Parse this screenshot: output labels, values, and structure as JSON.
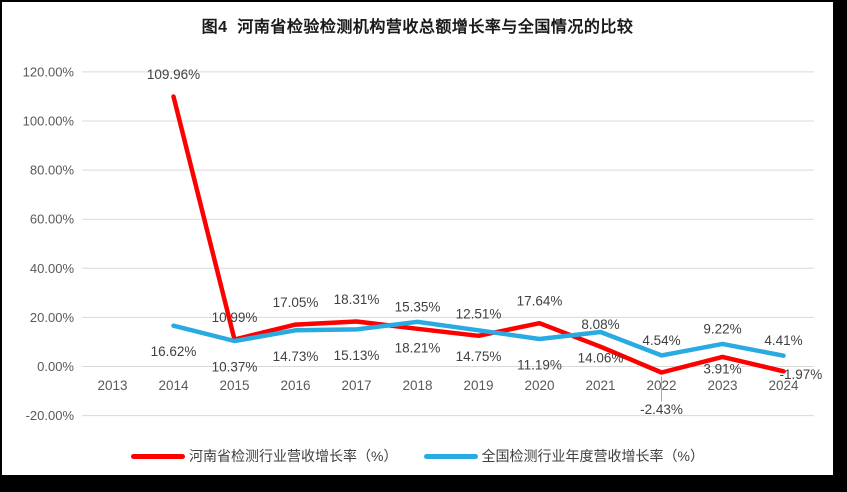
{
  "title": "图4  河南省检验检测机构营收总额增长率与全国情况的比较",
  "chart_data": {
    "type": "line",
    "categories": [
      "2013",
      "2014",
      "2015",
      "2016",
      "2017",
      "2018",
      "2019",
      "2020",
      "2021",
      "2022",
      "2023",
      "2024"
    ],
    "series": [
      {
        "name": "河南省检测行业营收增长率（%）",
        "color": "#FF0000",
        "values": [
          null,
          109.96,
          10.99,
          17.05,
          18.31,
          15.35,
          12.51,
          17.64,
          8.08,
          -2.43,
          3.91,
          -1.97
        ],
        "labels": [
          null,
          "109.96%",
          "10.99%",
          "17.05%",
          "18.31%",
          "15.35%",
          "12.51%",
          "17.64%",
          "8.08%",
          "-2.43%",
          "3.91%",
          "-1.97%"
        ],
        "label_positions": [
          null,
          "above",
          "above",
          "above",
          "above",
          "above",
          "above",
          "above",
          "above",
          "below-leader",
          "below-near",
          "right"
        ]
      },
      {
        "name": "全国检测行业年度营收增长率（%）",
        "color": "#29ABE2",
        "values": [
          null,
          16.62,
          10.37,
          14.73,
          15.13,
          18.21,
          14.75,
          11.19,
          14.06,
          4.54,
          9.22,
          4.41
        ],
        "labels": [
          null,
          "16.62%",
          "10.37%",
          "14.73%",
          "15.13%",
          "18.21%",
          "14.75%",
          "11.19%",
          "14.06%",
          "4.54%",
          "9.22%",
          "4.41%"
        ],
        "label_positions": [
          null,
          "below",
          "below",
          "below",
          "below",
          "below",
          "below",
          "below",
          "below",
          "above-near",
          "above-near",
          "above-near"
        ]
      }
    ],
    "y_tick_labels": [
      "-20.00%",
      "0.00%",
      "20.00%",
      "40.00%",
      "60.00%",
      "80.00%",
      "100.00%",
      "120.00%"
    ],
    "ylim": [
      -20,
      120
    ],
    "ytick_step": 20,
    "grid": true,
    "legend_position": "bottom",
    "gridline_color": "#D9D9D9",
    "leader_line_color": "#A6A6A6",
    "axis_label_color": "#595959",
    "data_label_color": "#404040"
  }
}
